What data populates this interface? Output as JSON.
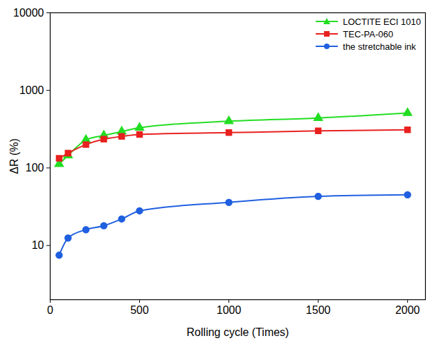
{
  "chart_data": {
    "type": "line",
    "x_label": "Rolling cycle (Times)",
    "y_label": "ΔR (%)",
    "log": "y",
    "xlim": [
      0,
      2100
    ],
    "xticks": [
      0,
      500,
      1000,
      1500,
      2000
    ],
    "ylim": [
      2,
      10000
    ],
    "yticks": [
      10,
      100,
      1000,
      10000
    ],
    "legend": "top-right",
    "x": [
      50,
      100,
      200,
      300,
      400,
      500,
      1000,
      1500,
      2000
    ],
    "series": [
      {
        "name": "LOCTITE ECI 1010",
        "color": "#22dd22",
        "marker": "triangle",
        "line_style": "solid",
        "values": [
          112,
          145,
          230,
          262,
          295,
          330,
          400,
          440,
          510
        ]
      },
      {
        "name": "TEC-PA-060",
        "color": "#e8211f",
        "marker": "square",
        "line_style": "solid",
        "values": [
          133,
          155,
          200,
          235,
          255,
          270,
          285,
          300,
          310
        ]
      },
      {
        "name": "the stretchable ink",
        "color": "#1f5fe0",
        "marker": "circle",
        "line_style": "solid",
        "values": [
          7.5,
          12.5,
          16,
          18,
          22,
          28,
          36,
          43,
          45
        ]
      }
    ]
  }
}
